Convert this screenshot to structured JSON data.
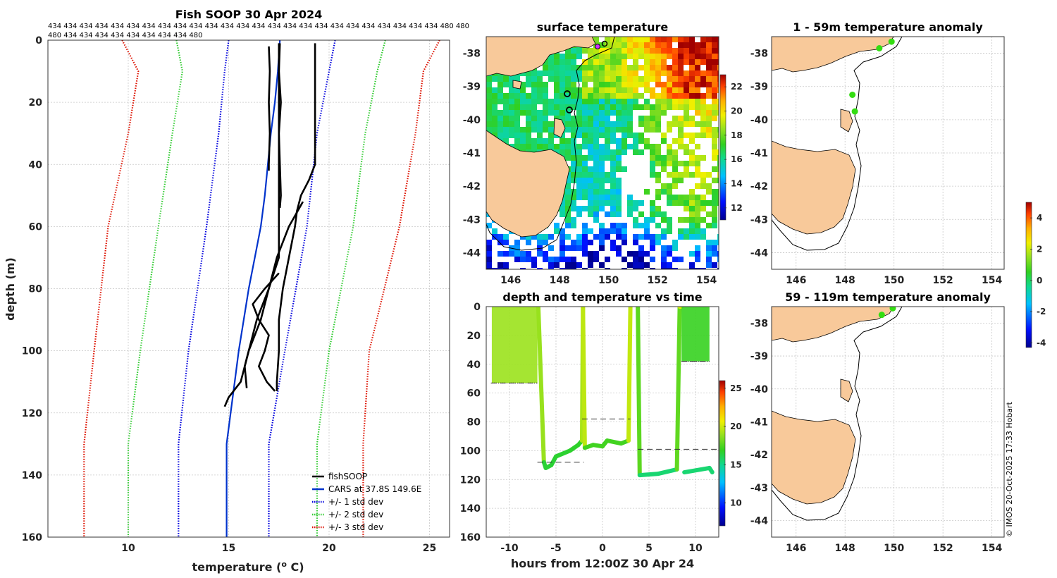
{
  "colors": {
    "fishsoop": "#000000",
    "cars": "#0033cc",
    "std1": "#0000dd",
    "std2": "#33cc33",
    "std3": "#dd1100",
    "land": "#f8c99a",
    "anomaly_dot": "#33dd11"
  },
  "copyright": "© IMOS 20-Oct-2025 17:33 Hobart",
  "profile_ids_line1": "434 434 434 434 434 434 434 434 434 434 434 434 434 434 434 434 434 434 434 434 434 434 434 434 434 480 480",
  "profile_ids_line2": "480 434 434 434 434 434 434 434 434 480",
  "chart_data": [
    {
      "id": "profile",
      "type": "line",
      "title": "Fish SOOP 30 Apr 2024",
      "xlabel": "temperature (o C)",
      "xlabel_main": "temperature (",
      "xlabel_sup": "o",
      "xlabel_end": " C)",
      "ylabel": "depth (m)",
      "xlim": [
        6,
        26
      ],
      "ylim": [
        160,
        0
      ],
      "xticks": [
        10,
        15,
        20,
        25
      ],
      "yticks": [
        0,
        20,
        40,
        60,
        80,
        100,
        120,
        140,
        160
      ],
      "legend": [
        "fishSOOP",
        "CARS at 37.8S 149.6E",
        "+/- 1 std dev",
        "+/- 2 std dev",
        "+/- 3 std dev"
      ],
      "legend_position": "bottom-right",
      "cars": {
        "depth": [
          0,
          10,
          20,
          30,
          40,
          50,
          60,
          70,
          80,
          90,
          100,
          110,
          120,
          130,
          160
        ],
        "temp": [
          17.55,
          17.45,
          17.3,
          17.1,
          16.95,
          16.8,
          16.6,
          16.3,
          16.0,
          15.75,
          15.5,
          15.3,
          15.1,
          14.9,
          14.9
        ]
      },
      "std_lines": [
        {
          "name": "+1",
          "level": 1,
          "depth": [
            0,
            10,
            30,
            60,
            100,
            130,
            160
          ],
          "temp": [
            20.3,
            20.0,
            19.4,
            18.9,
            17.8,
            17.0,
            17.0
          ]
        },
        {
          "name": "-1",
          "level": 1,
          "depth": [
            0,
            10,
            30,
            60,
            100,
            130,
            160
          ],
          "temp": [
            15.0,
            14.8,
            14.5,
            13.9,
            13.0,
            12.5,
            12.5
          ]
        },
        {
          "name": "+2",
          "level": 2,
          "depth": [
            0,
            10,
            30,
            60,
            100,
            130,
            160
          ],
          "temp": [
            22.8,
            22.4,
            21.8,
            21.2,
            20.0,
            19.4,
            19.4
          ]
        },
        {
          "name": "-2",
          "level": 2,
          "depth": [
            0,
            10,
            30,
            60,
            100,
            130,
            160
          ],
          "temp": [
            12.4,
            12.7,
            12.2,
            11.5,
            10.6,
            10.0,
            10.0
          ]
        },
        {
          "name": "+3",
          "level": 3,
          "depth": [
            0,
            10,
            30,
            60,
            100,
            130,
            160
          ],
          "temp": [
            25.5,
            24.7,
            24.3,
            23.5,
            22.0,
            21.7,
            21.7
          ]
        },
        {
          "name": "-3",
          "level": 3,
          "depth": [
            0,
            10,
            30,
            60,
            100,
            130,
            160
          ],
          "temp": [
            9.7,
            10.5,
            10.0,
            9.0,
            8.3,
            7.8,
            7.8
          ]
        }
      ],
      "fishsoop_traces": [
        {
          "depth": [
            2,
            10,
            20,
            30,
            40,
            42
          ],
          "temp": [
            17.0,
            17.05,
            17.0,
            17.05,
            17.0,
            17.0
          ]
        },
        {
          "depth": [
            1,
            10,
            20,
            30,
            40,
            50,
            54
          ],
          "temp": [
            17.55,
            17.5,
            17.6,
            17.5,
            17.55,
            17.6,
            17.55
          ]
        },
        {
          "depth": [
            1,
            20,
            40,
            45,
            50,
            55,
            60,
            70,
            80,
            90,
            100,
            110,
            113
          ],
          "temp": [
            19.3,
            19.3,
            19.3,
            19.0,
            18.6,
            18.4,
            18.3,
            18.0,
            17.7,
            17.5,
            17.5,
            17.4,
            17.4
          ]
        },
        {
          "depth": [
            1,
            50,
            70,
            80,
            90,
            100,
            110,
            115,
            118
          ],
          "temp": [
            17.5,
            17.5,
            17.5,
            17.0,
            16.4,
            16.0,
            15.6,
            15.0,
            14.8
          ]
        },
        {
          "depth": [
            52,
            60,
            70,
            80,
            90,
            100,
            105,
            112
          ],
          "temp": [
            18.7,
            18.0,
            17.4,
            17.0,
            16.6,
            16.0,
            15.8,
            15.9
          ]
        },
        {
          "depth": [
            75,
            80,
            85,
            90,
            95,
            100,
            105,
            110,
            113
          ],
          "temp": [
            17.5,
            16.8,
            16.2,
            16.5,
            17.0,
            16.8,
            16.5,
            16.9,
            17.3
          ]
        }
      ]
    },
    {
      "id": "sst_map",
      "type": "heatmap",
      "title": "surface temperature",
      "xlim": [
        145,
        154.5
      ],
      "ylim": [
        -44.5,
        -37.5
      ],
      "xticks": [
        146,
        148,
        150,
        152,
        154
      ],
      "yticks": [
        -38,
        -39,
        -40,
        -41,
        -42,
        -43,
        -44
      ],
      "colorbar_range": [
        11,
        23
      ],
      "colorbar_ticks": [
        12,
        14,
        16,
        18,
        20,
        22
      ]
    },
    {
      "id": "depth_time",
      "type": "scatter",
      "title": "depth and temperature vs time",
      "xlabel": "hours from 12:00Z 30 Apr 24",
      "xlim": [
        -12.5,
        12.5
      ],
      "ylim": [
        160,
        0
      ],
      "xticks": [
        -10,
        -5,
        0,
        5,
        10
      ],
      "yticks": [
        0,
        20,
        40,
        60,
        80,
        100,
        120,
        140,
        160
      ],
      "colorbar_range": [
        7,
        26
      ],
      "colorbar_ticks": [
        10,
        15,
        20,
        25
      ],
      "segments": [
        {
          "time": [
            -11.9,
            -7.0
          ],
          "depth": [
            0,
            53
          ],
          "temp": 19,
          "kind": "block"
        },
        {
          "time": [
            -6.9,
            -6.3,
            -6.1,
            -5.5,
            -5.0,
            -3.5,
            -2.6,
            -2.2,
            -2.1
          ],
          "depth": [
            0,
            108,
            112,
            110,
            104,
            100,
            96,
            93,
            0
          ],
          "temp": 16.5,
          "kind": "trace"
        },
        {
          "time": [
            -2.1,
            -1.9,
            -1.0,
            0.0,
            0.5,
            2.0,
            2.8,
            3.0
          ],
          "depth": [
            0,
            98,
            96,
            97,
            93,
            95,
            93,
            0
          ],
          "temp": 17,
          "kind": "trace"
        },
        {
          "time": [
            3.8,
            4.0,
            6.0,
            8.0,
            8.3,
            8.5
          ],
          "depth": [
            0,
            117,
            116,
            113,
            0,
            0
          ],
          "temp": 15.5,
          "kind": "trace"
        },
        {
          "time": [
            8.5,
            11.5
          ],
          "depth": [
            0,
            38
          ],
          "temp": 17,
          "kind": "block"
        },
        {
          "time": [
            8.8,
            11.5,
            11.8
          ],
          "depth": [
            115,
            112,
            115
          ],
          "temp": 15.5,
          "kind": "trace"
        }
      ],
      "reference_lines": [
        {
          "time": [
            -7.0,
            -2.0
          ],
          "depth": 108
        },
        {
          "time": [
            -2.2,
            3.0
          ],
          "depth": 78
        },
        {
          "time": [
            3.8,
            12.5
          ],
          "depth": 99
        },
        {
          "time": [
            -12.0,
            -7.0
          ],
          "depth": 53
        },
        {
          "time": [
            8.5,
            11.5
          ],
          "depth": 38
        }
      ]
    },
    {
      "id": "anom_1_59",
      "type": "scatter",
      "title": "1 - 59m temperature anomaly",
      "xlim": [
        145,
        154.5
      ],
      "ylim": [
        -44.5,
        -37.5
      ],
      "xticks": [
        146,
        148,
        150,
        152,
        154
      ],
      "yticks": [
        -38,
        -39,
        -40,
        -41,
        -42,
        -43,
        -44
      ],
      "points": [
        {
          "lon": 149.4,
          "lat": -37.85
        },
        {
          "lon": 149.9,
          "lat": -37.65
        },
        {
          "lon": 148.3,
          "lat": -39.25
        },
        {
          "lon": 148.4,
          "lat": -39.75
        }
      ]
    },
    {
      "id": "anom_59_119",
      "type": "scatter",
      "title": "59 - 119m temperature anomaly",
      "xlim": [
        145,
        154.5
      ],
      "ylim": [
        -44.5,
        -37.5
      ],
      "xticks": [
        146,
        148,
        150,
        152,
        154
      ],
      "yticks": [
        -38,
        -39,
        -40,
        -41,
        -42,
        -43,
        -44
      ],
      "points": [
        {
          "lon": 149.5,
          "lat": -37.75
        },
        {
          "lon": 149.95,
          "lat": -37.55
        }
      ]
    },
    {
      "id": "anomaly_colorbar",
      "type": "heatmap",
      "colorbar_range": [
        -4.3,
        5
      ],
      "colorbar_ticks": [
        -4,
        -2,
        0,
        2,
        4
      ]
    }
  ]
}
